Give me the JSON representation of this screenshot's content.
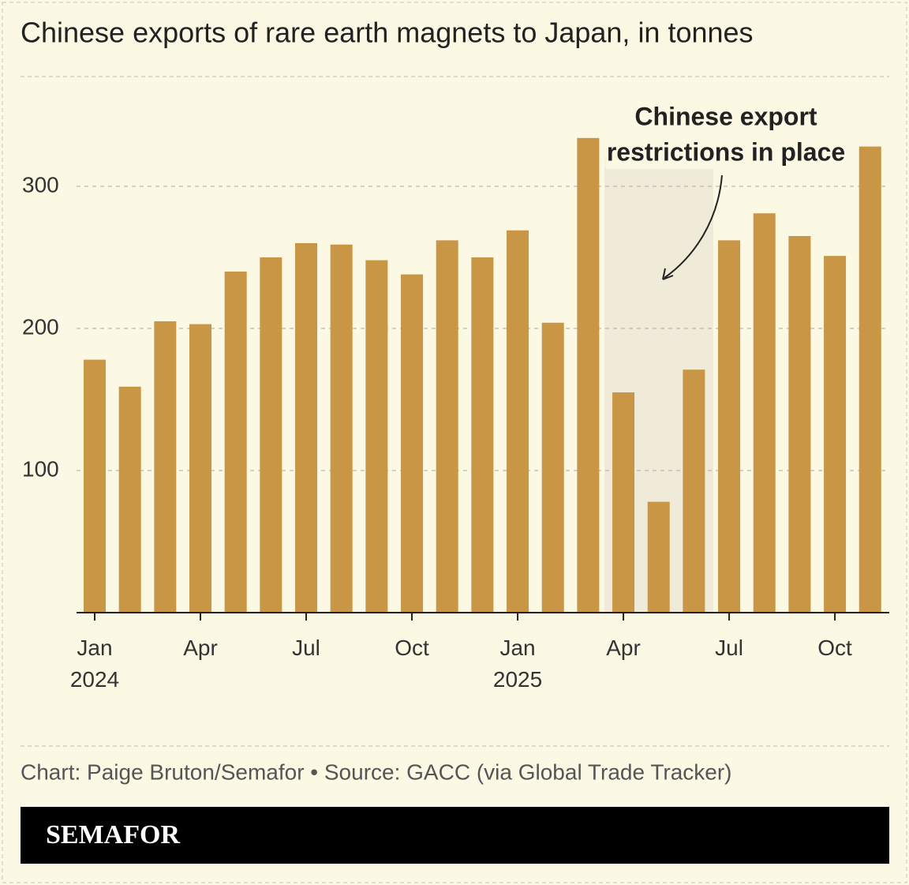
{
  "chart_data": {
    "type": "bar",
    "title": "Chinese exports of rare earth magnets to Japan, in tonnes",
    "categories": [
      "Jan 2024",
      null,
      null,
      "Apr",
      null,
      null,
      "Jul",
      null,
      null,
      "Oct",
      null,
      null,
      "Jan 2025",
      null,
      null,
      "Apr",
      null,
      null,
      "Jul",
      null,
      null,
      "Oct",
      null
    ],
    "values": [
      178,
      159,
      205,
      203,
      240,
      250,
      260,
      259,
      248,
      238,
      262,
      250,
      269,
      204,
      334,
      155,
      78,
      171,
      262,
      281,
      265,
      251,
      328
    ],
    "color": "#c99646",
    "ylim": [
      0,
      350
    ],
    "yticks": [
      100,
      200,
      300
    ],
    "grid": true,
    "annotation": [
      "Chinese export",
      "restrictions in place"
    ],
    "source": "Chart: Paige Bruton/Semafor • Source: GACC (via Global Trade Tracker)",
    "brand": "SEMAFOR"
  }
}
